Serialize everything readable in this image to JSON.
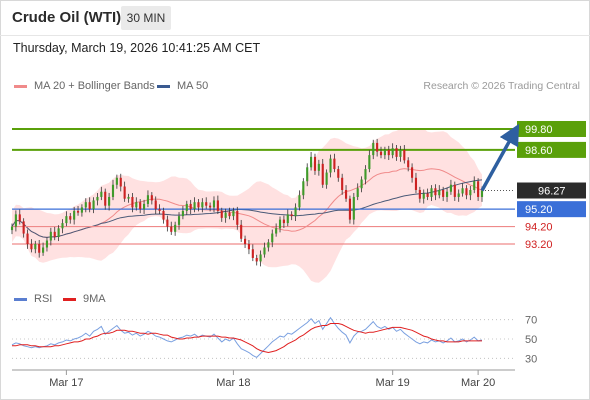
{
  "header": {
    "title": "Crude Oil (WTI)",
    "timeframe": "30 MIN",
    "datetime": "Thursday, March 19, 2026 10:41:25 AM CET",
    "credit": "Research © 2026 Trading Central"
  },
  "legend": {
    "bollinger": "MA 20 + Bollinger Bands",
    "ma50": "MA 50",
    "rsi": "RSI",
    "rsi_ma": "9MA"
  },
  "colors": {
    "resistance": "#5aa00a",
    "pivot": "#3a6fd8",
    "support": "#ef8a8a",
    "bollinger_band": "#ffdcdc",
    "ma20": "#f08a8a",
    "ma50": "#4a5a78",
    "candle_up": "#3f9a2a",
    "candle_down": "#cc2222",
    "arrow": "#2e5fa0",
    "current_price": "#2b2b2b",
    "rsi_line": "#7aa0e0",
    "rsi_ma_line": "#e02020"
  },
  "chart_data": [
    {
      "type": "candlestick",
      "y_range": [
        91.25,
        101.75
      ],
      "x_ticks": [
        "Mar 17",
        "Mar 18",
        "Mar 19",
        "Mar 20"
      ],
      "levels": [
        {
          "value": 99.8,
          "label": "99.80",
          "kind": "resistance"
        },
        {
          "value": 98.6,
          "label": "98.60",
          "kind": "resistance"
        },
        {
          "value": 95.2,
          "label": "95.20",
          "kind": "pivot"
        },
        {
          "value": 94.2,
          "label": "94.20",
          "kind": "support"
        },
        {
          "value": 93.2,
          "label": "93.20",
          "kind": "support"
        }
      ],
      "current_price": {
        "value": 96.27,
        "label": "96.27"
      },
      "close": [
        94.2,
        94.9,
        94.5,
        93.8,
        93.2,
        92.9,
        93.2,
        92.7,
        93.0,
        93.4,
        93.9,
        93.6,
        94.1,
        94.4,
        94.8,
        94.6,
        95.1,
        95.0,
        95.3,
        95.6,
        95.2,
        95.7,
        95.9,
        96.2,
        95.4,
        95.9,
        96.6,
        97.0,
        96.5,
        95.8,
        95.9,
        95.3,
        95.6,
        95.2,
        95.5,
        96.0,
        95.7,
        95.2,
        95.1,
        94.6,
        94.2,
        93.9,
        94.3,
        94.8,
        95.1,
        95.5,
        95.2,
        95.6,
        95.3,
        95.6,
        95.4,
        95.3,
        95.7,
        95.1,
        94.7,
        95.0,
        94.8,
        95.1,
        94.3,
        93.5,
        93.2,
        92.9,
        92.4,
        92.2,
        92.6,
        93.0,
        93.3,
        93.8,
        94.1,
        94.6,
        94.4,
        94.9,
        94.8,
        95.3,
        96.0,
        96.8,
        97.6,
        98.2,
        97.4,
        97.8,
        96.6,
        97.3,
        98.1,
        97.5,
        97.0,
        96.3,
        95.8,
        94.6,
        95.9,
        96.4,
        96.9,
        97.5,
        98.3,
        99.0,
        98.5,
        98.3,
        98.6,
        98.3,
        98.7,
        98.2,
        98.6,
        98.0,
        97.6,
        97.0,
        96.3,
        95.8,
        96.1,
        95.9,
        96.4,
        96.0,
        96.3,
        95.9,
        96.2,
        96.6,
        95.9,
        96.1,
        96.4,
        96.0,
        96.3,
        96.8,
        95.9,
        96.27
      ],
      "rsi": {
        "ticks": [
          70,
          50,
          30
        ],
        "y_range": [
          20,
          80
        ]
      },
      "rsi_values": [
        44,
        46,
        45,
        43,
        42,
        41,
        42,
        41,
        42,
        43,
        45,
        44,
        46,
        47,
        49,
        48,
        50,
        51,
        53,
        56,
        53,
        58,
        60,
        63,
        55,
        58,
        61,
        64,
        59,
        56,
        57,
        54,
        56,
        53,
        55,
        58,
        56,
        53,
        52,
        50,
        48,
        47,
        49,
        51,
        52,
        54,
        53,
        55,
        52,
        54,
        53,
        52,
        55,
        51,
        47,
        50,
        48,
        51,
        45,
        40,
        38,
        36,
        33,
        31,
        35,
        39,
        43,
        47,
        50,
        53,
        52,
        56,
        55,
        58,
        61,
        64,
        67,
        71,
        66,
        69,
        60,
        66,
        72,
        66,
        61,
        57,
        54,
        46,
        53,
        57,
        58,
        60,
        64,
        68,
        63,
        61,
        63,
        60,
        62,
        58,
        60,
        56,
        53,
        50,
        47,
        45,
        47,
        46,
        49,
        47,
        48,
        46,
        48,
        51,
        47,
        48,
        50,
        47,
        49,
        52,
        48,
        49
      ],
      "rsi_ma_values": [
        43,
        43,
        44,
        44,
        44,
        43,
        43,
        42,
        42,
        42,
        42,
        43,
        43,
        44,
        45,
        46,
        47,
        47,
        48,
        50,
        50,
        52,
        53,
        55,
        56,
        56,
        57,
        59,
        59,
        59,
        58,
        58,
        57,
        56,
        56,
        55,
        56,
        56,
        55,
        54,
        54,
        52,
        51,
        50,
        50,
        51,
        51,
        52,
        52,
        53,
        53,
        53,
        53,
        53,
        52,
        52,
        51,
        51,
        50,
        49,
        47,
        45,
        43,
        40,
        38,
        37,
        36,
        37,
        38,
        40,
        42,
        45,
        47,
        49,
        52,
        54,
        57,
        60,
        62,
        63,
        64,
        64,
        66,
        66,
        66,
        65,
        63,
        61,
        59,
        58,
        57,
        56,
        57,
        57,
        58,
        59,
        60,
        61,
        62,
        62,
        62,
        61,
        60,
        59,
        57,
        55,
        53,
        52,
        50,
        49,
        48,
        48,
        47,
        47,
        47,
        47,
        48,
        48,
        48,
        48,
        48,
        48
      ]
    }
  ]
}
